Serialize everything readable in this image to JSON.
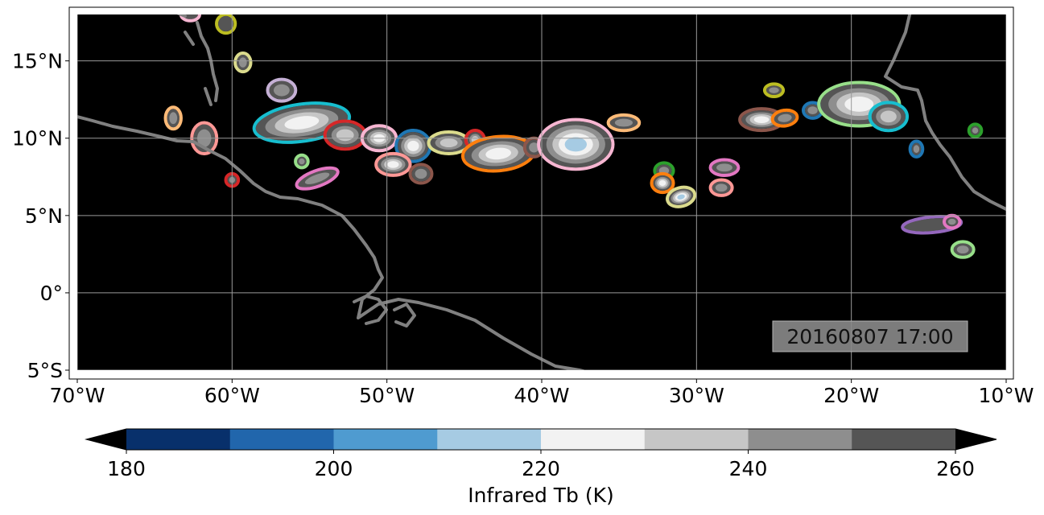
{
  "map": {
    "type": "satellite-brightness-temperature-map",
    "lon_range": [
      -70,
      -10
    ],
    "lat_range": [
      -5,
      18
    ],
    "x_ticks": [
      {
        "lon": -70,
        "label": "70°W"
      },
      {
        "lon": -60,
        "label": "60°W"
      },
      {
        "lon": -50,
        "label": "50°W"
      },
      {
        "lon": -40,
        "label": "40°W"
      },
      {
        "lon": -30,
        "label": "30°W"
      },
      {
        "lon": -20,
        "label": "20°W"
      },
      {
        "lon": -10,
        "label": "10°W"
      }
    ],
    "y_ticks": [
      {
        "lat": 15,
        "label": "15°N"
      },
      {
        "lat": 10,
        "label": "10°N"
      },
      {
        "lat": 5,
        "label": "5°N"
      },
      {
        "lat": 0,
        "label": "0°"
      },
      {
        "lat": -5,
        "label": "5°S"
      }
    ],
    "timestamp": "20160807 17:00",
    "background_color": "#000000",
    "coastline_color": "#808080",
    "gridline_color": "#9a9a9a"
  },
  "colorbar": {
    "label": "Infrared Tb (K)",
    "min": 180,
    "max": 260,
    "step": 10,
    "extend": "both",
    "ticks": [
      {
        "value": 180,
        "label": "180"
      },
      {
        "value": 200,
        "label": "200"
      },
      {
        "value": 220,
        "label": "220"
      },
      {
        "value": 240,
        "label": "240"
      },
      {
        "value": 260,
        "label": "260"
      }
    ],
    "colors": [
      "#08306b",
      "#2166ac",
      "#4f9bd0",
      "#a6cbe3",
      "#f2f2f2",
      "#c6c6c6",
      "#8e8e8e",
      "#555555"
    ]
  },
  "clouds": [
    {
      "lon": -55.5,
      "lat": 11.0,
      "rx": 3.0,
      "ry": 1.1,
      "rot": -8,
      "core": 225,
      "outline": "#17becf"
    },
    {
      "lon": -56.8,
      "lat": 13.1,
      "rx": 0.8,
      "ry": 0.6,
      "rot": 0,
      "core": 240,
      "outline": "#c5b0d5"
    },
    {
      "lon": -52.7,
      "lat": 10.2,
      "rx": 1.2,
      "ry": 0.8,
      "rot": 0,
      "core": 228,
      "outline": "#d62728"
    },
    {
      "lon": -50.5,
      "lat": 10.0,
      "rx": 1.0,
      "ry": 0.7,
      "rot": 0,
      "core": 222,
      "outline": "#f7b6d2"
    },
    {
      "lon": -48.3,
      "lat": 9.5,
      "rx": 1.0,
      "ry": 0.9,
      "rot": 0,
      "core": 218,
      "outline": "#1f77b4"
    },
    {
      "lon": -49.6,
      "lat": 8.3,
      "rx": 1.0,
      "ry": 0.6,
      "rot": 0,
      "core": 222,
      "outline": "#ff9896"
    },
    {
      "lon": -47.8,
      "lat": 7.7,
      "rx": 0.6,
      "ry": 0.5,
      "rot": 0,
      "core": 245,
      "outline": "#8c564b"
    },
    {
      "lon": -46.0,
      "lat": 9.7,
      "rx": 1.2,
      "ry": 0.6,
      "rot": 0,
      "core": 226,
      "outline": "#dbdb8d"
    },
    {
      "lon": -44.3,
      "lat": 9.9,
      "rx": 0.5,
      "ry": 0.5,
      "rot": 0,
      "core": 235,
      "outline": "#d62728"
    },
    {
      "lon": -42.8,
      "lat": 9.0,
      "rx": 2.2,
      "ry": 1.0,
      "rot": -5,
      "core": 218,
      "outline": "#ff7f0e"
    },
    {
      "lon": -40.5,
      "lat": 9.4,
      "rx": 0.5,
      "ry": 0.5,
      "rot": 0,
      "core": 240,
      "outline": "#8c564b"
    },
    {
      "lon": -37.8,
      "lat": 9.6,
      "rx": 2.3,
      "ry": 1.5,
      "rot": 0,
      "core": 212,
      "outline": "#f7b6d2"
    },
    {
      "lon": -34.7,
      "lat": 11.0,
      "rx": 0.9,
      "ry": 0.4,
      "rot": 0,
      "core": 238,
      "outline": "#ffbb78"
    },
    {
      "lon": -32.1,
      "lat": 7.9,
      "rx": 0.5,
      "ry": 0.4,
      "rot": 0,
      "core": 240,
      "outline": "#2ca02c"
    },
    {
      "lon": -32.2,
      "lat": 7.1,
      "rx": 0.6,
      "ry": 0.5,
      "rot": 0,
      "core": 220,
      "outline": "#ff7f0e"
    },
    {
      "lon": -31.0,
      "lat": 6.2,
      "rx": 0.8,
      "ry": 0.5,
      "rot": -15,
      "core": 215,
      "outline": "#dbdb8d"
    },
    {
      "lon": -28.2,
      "lat": 8.1,
      "rx": 0.8,
      "ry": 0.4,
      "rot": 0,
      "core": 238,
      "outline": "#e377c2"
    },
    {
      "lon": -28.4,
      "lat": 6.8,
      "rx": 0.6,
      "ry": 0.4,
      "rot": 0,
      "core": 245,
      "outline": "#ff9896"
    },
    {
      "lon": -25.8,
      "lat": 11.2,
      "rx": 1.3,
      "ry": 0.6,
      "rot": 0,
      "core": 222,
      "outline": "#8c564b"
    },
    {
      "lon": -24.3,
      "lat": 11.3,
      "rx": 0.7,
      "ry": 0.4,
      "rot": -8,
      "core": 240,
      "outline": "#ff7f0e"
    },
    {
      "lon": -22.5,
      "lat": 11.8,
      "rx": 0.5,
      "ry": 0.4,
      "rot": 0,
      "core": 240,
      "outline": "#1f77b4"
    },
    {
      "lon": -19.5,
      "lat": 12.2,
      "rx": 2.5,
      "ry": 1.3,
      "rot": 0,
      "core": 218,
      "outline": "#98df8a"
    },
    {
      "lon": -17.6,
      "lat": 11.4,
      "rx": 1.1,
      "ry": 0.8,
      "rot": 0,
      "core": 235,
      "outline": "#17becf"
    },
    {
      "lon": -25.0,
      "lat": 13.1,
      "rx": 0.5,
      "ry": 0.3,
      "rot": 0,
      "core": 245,
      "outline": "#bcbd22"
    },
    {
      "lon": -63.8,
      "lat": 11.3,
      "rx": 0.4,
      "ry": 0.6,
      "rot": 0,
      "core": 245,
      "outline": "#ffbb78"
    },
    {
      "lon": -61.8,
      "lat": 10.0,
      "rx": 0.7,
      "ry": 0.9,
      "rot": 0,
      "core": 245,
      "outline": "#ff9896"
    },
    {
      "lon": -60.0,
      "lat": 7.3,
      "rx": 0.3,
      "ry": 0.3,
      "rot": 0,
      "core": 245,
      "outline": "#d62728"
    },
    {
      "lon": -59.3,
      "lat": 14.9,
      "rx": 0.4,
      "ry": 0.5,
      "rot": 0,
      "core": 240,
      "outline": "#dbdb8d"
    },
    {
      "lon": -60.4,
      "lat": 17.4,
      "rx": 0.5,
      "ry": 0.5,
      "rot": 0,
      "core": 250,
      "outline": "#bcbd22"
    },
    {
      "lon": -55.5,
      "lat": 8.5,
      "rx": 0.3,
      "ry": 0.3,
      "rot": 0,
      "core": 245,
      "outline": "#98df8a"
    },
    {
      "lon": -54.5,
      "lat": 7.4,
      "rx": 1.3,
      "ry": 0.4,
      "rot": -20,
      "core": 240,
      "outline": "#e377c2"
    },
    {
      "lon": -15.8,
      "lat": 9.3,
      "rx": 0.3,
      "ry": 0.4,
      "rot": 0,
      "core": 245,
      "outline": "#1f77b4"
    },
    {
      "lon": -12.0,
      "lat": 10.5,
      "rx": 0.3,
      "ry": 0.3,
      "rot": 0,
      "core": 245,
      "outline": "#2ca02c"
    },
    {
      "lon": -14.8,
      "lat": 4.4,
      "rx": 1.8,
      "ry": 0.4,
      "rot": -5,
      "core": 248,
      "outline": "#9467bd"
    },
    {
      "lon": -13.5,
      "lat": 4.6,
      "rx": 0.4,
      "ry": 0.3,
      "rot": 0,
      "core": 245,
      "outline": "#e377c2"
    },
    {
      "lon": -12.8,
      "lat": 2.8,
      "rx": 0.6,
      "ry": 0.4,
      "rot": 0,
      "core": 245,
      "outline": "#98df8a"
    },
    {
      "lon": -62.7,
      "lat": 18.0,
      "rx": 0.5,
      "ry": 0.3,
      "rot": 0,
      "core": 250,
      "outline": "#f7b6d2"
    }
  ]
}
